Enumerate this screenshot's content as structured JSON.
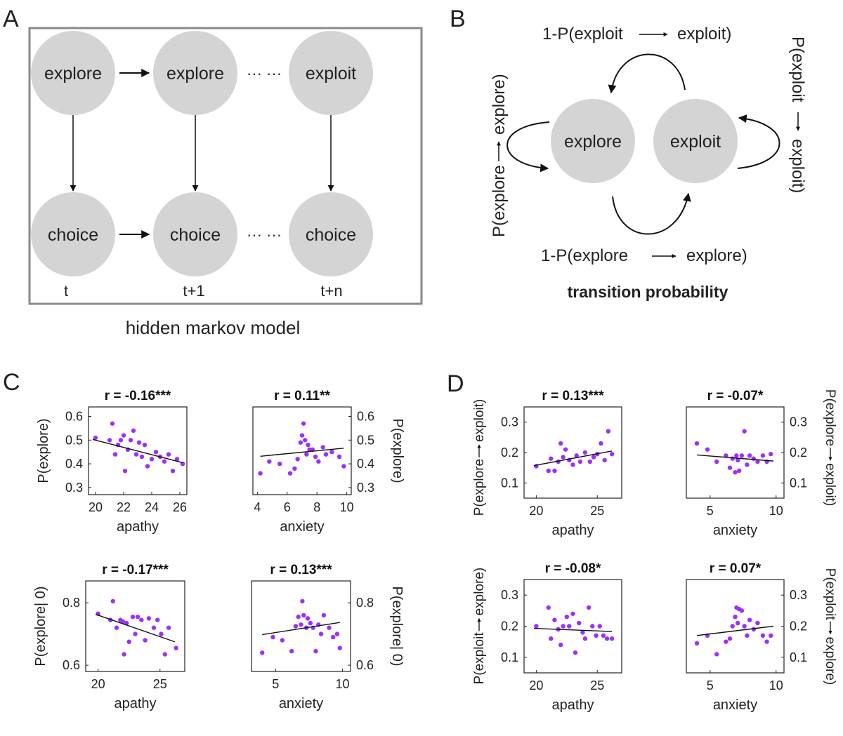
{
  "colors": {
    "node_fill": "#d4d4d4",
    "frame_stroke": "#8a8a8a",
    "dot": "#9b30ff",
    "text": "#222222",
    "line": "#111111"
  },
  "panelA": {
    "letter": "A",
    "caption": "hidden markov model",
    "top_nodes": [
      "explore",
      "explore",
      "exploit"
    ],
    "bottom_nodes": [
      "choice",
      "choice",
      "choice"
    ],
    "time_labels": [
      "t",
      "t+1",
      "t+n"
    ],
    "ellipsis": "··· ···"
  },
  "panelB": {
    "letter": "B",
    "node_explore": "explore",
    "node_exploit": "exploit",
    "top_label_pre": "1-P(exploit",
    "top_label_post": "exploit)",
    "bottom_label_pre": "1-P(explore",
    "bottom_label_post": "explore)",
    "left_label_pre": "P(explore",
    "left_label_post": "explore)",
    "right_label_pre": "P(exploit",
    "right_label_post": "exploit)",
    "caption": "transition probability"
  },
  "panelC": {
    "letter": "C"
  },
  "panelD": {
    "letter": "D"
  },
  "chart_data": [
    {
      "id": "C1",
      "type": "scatter",
      "title": "r = -0.16***",
      "xlabel": "apathy",
      "ylabel": "P(explore)",
      "ylabel_side": "left",
      "xlim": [
        19.5,
        26.5
      ],
      "ylim": [
        0.27,
        0.64
      ],
      "xticks": [
        20,
        22,
        24,
        26
      ],
      "yticks": [
        0.3,
        0.4,
        0.5,
        0.6
      ],
      "xticklabels": [
        "20",
        "22",
        "24",
        "26"
      ],
      "yticklabels": [
        "0.3",
        "0.4",
        "0.5",
        "0.6"
      ],
      "points": [
        [
          20,
          0.51
        ],
        [
          21,
          0.5
        ],
        [
          21.2,
          0.57
        ],
        [
          21.4,
          0.44
        ],
        [
          21.6,
          0.48
        ],
        [
          21.8,
          0.5
        ],
        [
          22,
          0.52
        ],
        [
          22.1,
          0.37
        ],
        [
          22.3,
          0.46
        ],
        [
          22.5,
          0.5
        ],
        [
          22.7,
          0.54
        ],
        [
          22.9,
          0.44
        ],
        [
          23.1,
          0.49
        ],
        [
          23.3,
          0.43
        ],
        [
          23.5,
          0.48
        ],
        [
          23.7,
          0.39
        ],
        [
          24,
          0.42
        ],
        [
          24.3,
          0.45
        ],
        [
          24.6,
          0.43
        ],
        [
          24.9,
          0.41
        ],
        [
          25.2,
          0.44
        ],
        [
          25.5,
          0.37
        ],
        [
          25.8,
          0.42
        ],
        [
          26.2,
          0.4
        ]
      ],
      "fit": [
        [
          19.8,
          0.503
        ],
        [
          26.2,
          0.405
        ]
      ]
    },
    {
      "id": "C2",
      "type": "scatter",
      "title": "r = 0.11**",
      "xlabel": "anxiety",
      "ylabel": "P(explore)",
      "ylabel_side": "right",
      "xlim": [
        3.7,
        10.3
      ],
      "ylim": [
        0.27,
        0.64
      ],
      "xticks": [
        4,
        6,
        8,
        10
      ],
      "yticks": [
        0.3,
        0.4,
        0.5,
        0.6
      ],
      "xticklabels": [
        "4",
        "6",
        "8",
        "10"
      ],
      "yticklabels": [
        "0.3",
        "0.4",
        "0.5",
        "0.6"
      ],
      "points": [
        [
          4.2,
          0.36
        ],
        [
          4.8,
          0.41
        ],
        [
          5.5,
          0.4
        ],
        [
          6.2,
          0.36
        ],
        [
          6.5,
          0.38
        ],
        [
          6.7,
          0.42
        ],
        [
          6.9,
          0.49
        ],
        [
          7.0,
          0.52
        ],
        [
          7.1,
          0.57
        ],
        [
          7.2,
          0.5
        ],
        [
          7.3,
          0.44
        ],
        [
          7.4,
          0.48
        ],
        [
          7.5,
          0.46
        ],
        [
          7.7,
          0.46
        ],
        [
          7.9,
          0.43
        ],
        [
          8.1,
          0.41
        ],
        [
          8.4,
          0.47
        ],
        [
          8.6,
          0.44
        ],
        [
          9.0,
          0.45
        ],
        [
          9.5,
          0.43
        ],
        [
          9.8,
          0.39
        ]
      ],
      "fit": [
        [
          4.2,
          0.432
        ],
        [
          9.8,
          0.466
        ]
      ]
    },
    {
      "id": "C3",
      "type": "scatter",
      "title": "r = -0.17***",
      "xlabel": "apathy",
      "ylabel": "P(explore| 0)",
      "ylabel_side": "left",
      "xlim": [
        19.0,
        27.0
      ],
      "ylim": [
        0.58,
        0.87
      ],
      "xticks": [
        20,
        25
      ],
      "yticks": [
        0.6,
        0.8
      ],
      "xticklabels": [
        "20",
        "25"
      ],
      "yticklabels": [
        "0.6",
        "0.8"
      ],
      "points": [
        [
          20,
          0.765
        ],
        [
          21,
          0.745
        ],
        [
          21.2,
          0.805
        ],
        [
          21.5,
          0.72
        ],
        [
          21.8,
          0.745
        ],
        [
          22,
          0.74
        ],
        [
          22.1,
          0.635
        ],
        [
          22.3,
          0.735
        ],
        [
          22.5,
          0.675
        ],
        [
          22.8,
          0.755
        ],
        [
          23,
          0.7
        ],
        [
          23.2,
          0.755
        ],
        [
          23.5,
          0.745
        ],
        [
          23.8,
          0.68
        ],
        [
          24.1,
          0.75
        ],
        [
          24.5,
          0.72
        ],
        [
          24.8,
          0.745
        ],
        [
          25.1,
          0.7
        ],
        [
          25.4,
          0.635
        ],
        [
          25.7,
          0.72
        ],
        [
          26.3,
          0.655
        ]
      ],
      "fit": [
        [
          19.8,
          0.763
        ],
        [
          26.2,
          0.675
        ]
      ]
    },
    {
      "id": "C4",
      "type": "scatter",
      "title": "r = 0.13***",
      "xlabel": "anxiety",
      "ylabel": "P(explore| 0)",
      "ylabel_side": "right",
      "xlim": [
        3.2,
        10.6
      ],
      "ylim": [
        0.58,
        0.87
      ],
      "xticks": [
        5,
        10
      ],
      "yticks": [
        0.6,
        0.8
      ],
      "xticklabels": [
        "5",
        "10"
      ],
      "yticklabels": [
        "0.6",
        "0.8"
      ],
      "points": [
        [
          4.0,
          0.64
        ],
        [
          4.8,
          0.69
        ],
        [
          5.5,
          0.68
        ],
        [
          6.2,
          0.645
        ],
        [
          6.5,
          0.725
        ],
        [
          6.7,
          0.755
        ],
        [
          6.9,
          0.73
        ],
        [
          7.0,
          0.805
        ],
        [
          7.1,
          0.76
        ],
        [
          7.3,
          0.72
        ],
        [
          7.4,
          0.75
        ],
        [
          7.6,
          0.735
        ],
        [
          7.8,
          0.72
        ],
        [
          8.0,
          0.645
        ],
        [
          8.2,
          0.73
        ],
        [
          8.4,
          0.7
        ],
        [
          8.6,
          0.76
        ],
        [
          9.0,
          0.72
        ],
        [
          9.3,
          0.69
        ],
        [
          9.6,
          0.7
        ],
        [
          9.8,
          0.655
        ]
      ],
      "fit": [
        [
          4.0,
          0.698
        ],
        [
          9.8,
          0.737
        ]
      ]
    },
    {
      "id": "D1",
      "type": "scatter",
      "title": "r = 0.13***",
      "xlabel": "apathy",
      "ylabel_pre": "P(explore",
      "ylabel_post": "exploit)",
      "ylabel_side": "left",
      "xlim": [
        19.0,
        27.0
      ],
      "ylim": [
        0.05,
        0.35
      ],
      "xticks": [
        20,
        25
      ],
      "yticks": [
        0.1,
        0.2,
        0.3
      ],
      "xticklabels": [
        "20",
        "25"
      ],
      "yticklabels": [
        "0.1",
        "0.2",
        "0.3"
      ],
      "points": [
        [
          20,
          0.155
        ],
        [
          21,
          0.14
        ],
        [
          21.2,
          0.18
        ],
        [
          21.5,
          0.14
        ],
        [
          21.8,
          0.17
        ],
        [
          22,
          0.23
        ],
        [
          22.2,
          0.185
        ],
        [
          22.4,
          0.21
        ],
        [
          22.7,
          0.175
        ],
        [
          23,
          0.16
        ],
        [
          23.3,
          0.19
        ],
        [
          23.6,
          0.17
        ],
        [
          24,
          0.2
        ],
        [
          24.4,
          0.17
        ],
        [
          24.7,
          0.185
        ],
        [
          25,
          0.195
        ],
        [
          25.3,
          0.23
        ],
        [
          25.6,
          0.175
        ],
        [
          25.9,
          0.27
        ],
        [
          26.2,
          0.195
        ]
      ],
      "fit": [
        [
          19.8,
          0.157
        ],
        [
          26.2,
          0.205
        ]
      ]
    },
    {
      "id": "D2",
      "type": "scatter",
      "title": "r = -0.07*",
      "xlabel": "anxiety",
      "ylabel_pre": "P(explore",
      "ylabel_post": "exploit)",
      "ylabel_side": "right",
      "xlim": [
        3.2,
        10.6
      ],
      "ylim": [
        0.05,
        0.35
      ],
      "xticks": [
        5,
        10
      ],
      "yticks": [
        0.1,
        0.2,
        0.3
      ],
      "xticklabels": [
        "5",
        "10"
      ],
      "yticklabels": [
        "0.1",
        "0.2",
        "0.3"
      ],
      "points": [
        [
          4.0,
          0.23
        ],
        [
          4.8,
          0.21
        ],
        [
          5.5,
          0.17
        ],
        [
          6.2,
          0.19
        ],
        [
          6.5,
          0.15
        ],
        [
          6.7,
          0.18
        ],
        [
          6.9,
          0.135
        ],
        [
          7.0,
          0.19
        ],
        [
          7.1,
          0.175
        ],
        [
          7.2,
          0.14
        ],
        [
          7.4,
          0.19
        ],
        [
          7.6,
          0.27
        ],
        [
          7.8,
          0.16
        ],
        [
          8.0,
          0.19
        ],
        [
          8.3,
          0.18
        ],
        [
          8.6,
          0.17
        ],
        [
          9.0,
          0.19
        ],
        [
          9.3,
          0.17
        ],
        [
          9.6,
          0.195
        ]
      ],
      "fit": [
        [
          4.0,
          0.192
        ],
        [
          9.8,
          0.172
        ]
      ]
    },
    {
      "id": "D3",
      "type": "scatter",
      "title": "r = -0.08*",
      "xlabel": "apathy",
      "ylabel_pre": "P(exploit",
      "ylabel_post": "explore)",
      "ylabel_side": "left",
      "xlim": [
        19.0,
        27.0
      ],
      "ylim": [
        0.05,
        0.35
      ],
      "xticks": [
        20,
        25
      ],
      "yticks": [
        0.1,
        0.2,
        0.3
      ],
      "xticklabels": [
        "20",
        "25"
      ],
      "yticklabels": [
        "0.1",
        "0.2",
        "0.3"
      ],
      "points": [
        [
          20,
          0.2
        ],
        [
          21,
          0.26
        ],
        [
          21.2,
          0.16
        ],
        [
          21.5,
          0.22
        ],
        [
          21.8,
          0.19
        ],
        [
          22,
          0.14
        ],
        [
          22.2,
          0.2
        ],
        [
          22.5,
          0.23
        ],
        [
          22.7,
          0.2
        ],
        [
          23,
          0.24
        ],
        [
          23.2,
          0.115
        ],
        [
          23.5,
          0.21
        ],
        [
          23.8,
          0.18
        ],
        [
          24,
          0.16
        ],
        [
          24.3,
          0.26
        ],
        [
          24.6,
          0.2
        ],
        [
          24.9,
          0.17
        ],
        [
          25.2,
          0.2
        ],
        [
          25.5,
          0.17
        ],
        [
          25.8,
          0.16
        ],
        [
          26.2,
          0.16
        ]
      ],
      "fit": [
        [
          19.8,
          0.193
        ],
        [
          26.2,
          0.183
        ]
      ]
    },
    {
      "id": "D4",
      "type": "scatter",
      "title": "r = 0.07*",
      "xlabel": "anxiety",
      "ylabel_pre": "P(exploit",
      "ylabel_post": "explore)",
      "ylabel_side": "right",
      "xlim": [
        3.2,
        10.6
      ],
      "ylim": [
        0.05,
        0.35
      ],
      "xticks": [
        5,
        10
      ],
      "yticks": [
        0.1,
        0.2,
        0.3
      ],
      "xticklabels": [
        "5",
        "10"
      ],
      "yticklabels": [
        "0.1",
        "0.2",
        "0.3"
      ],
      "points": [
        [
          4.0,
          0.145
        ],
        [
          4.8,
          0.17
        ],
        [
          5.5,
          0.11
        ],
        [
          6.2,
          0.15
        ],
        [
          6.5,
          0.16
        ],
        [
          6.7,
          0.2
        ],
        [
          6.9,
          0.23
        ],
        [
          7.0,
          0.26
        ],
        [
          7.1,
          0.21
        ],
        [
          7.2,
          0.255
        ],
        [
          7.4,
          0.25
        ],
        [
          7.6,
          0.2
        ],
        [
          7.8,
          0.17
        ],
        [
          8.0,
          0.22
        ],
        [
          8.3,
          0.19
        ],
        [
          8.6,
          0.21
        ],
        [
          9.0,
          0.17
        ],
        [
          9.3,
          0.15
        ],
        [
          9.6,
          0.17
        ]
      ],
      "fit": [
        [
          4.0,
          0.17
        ],
        [
          9.8,
          0.2
        ]
      ]
    }
  ]
}
